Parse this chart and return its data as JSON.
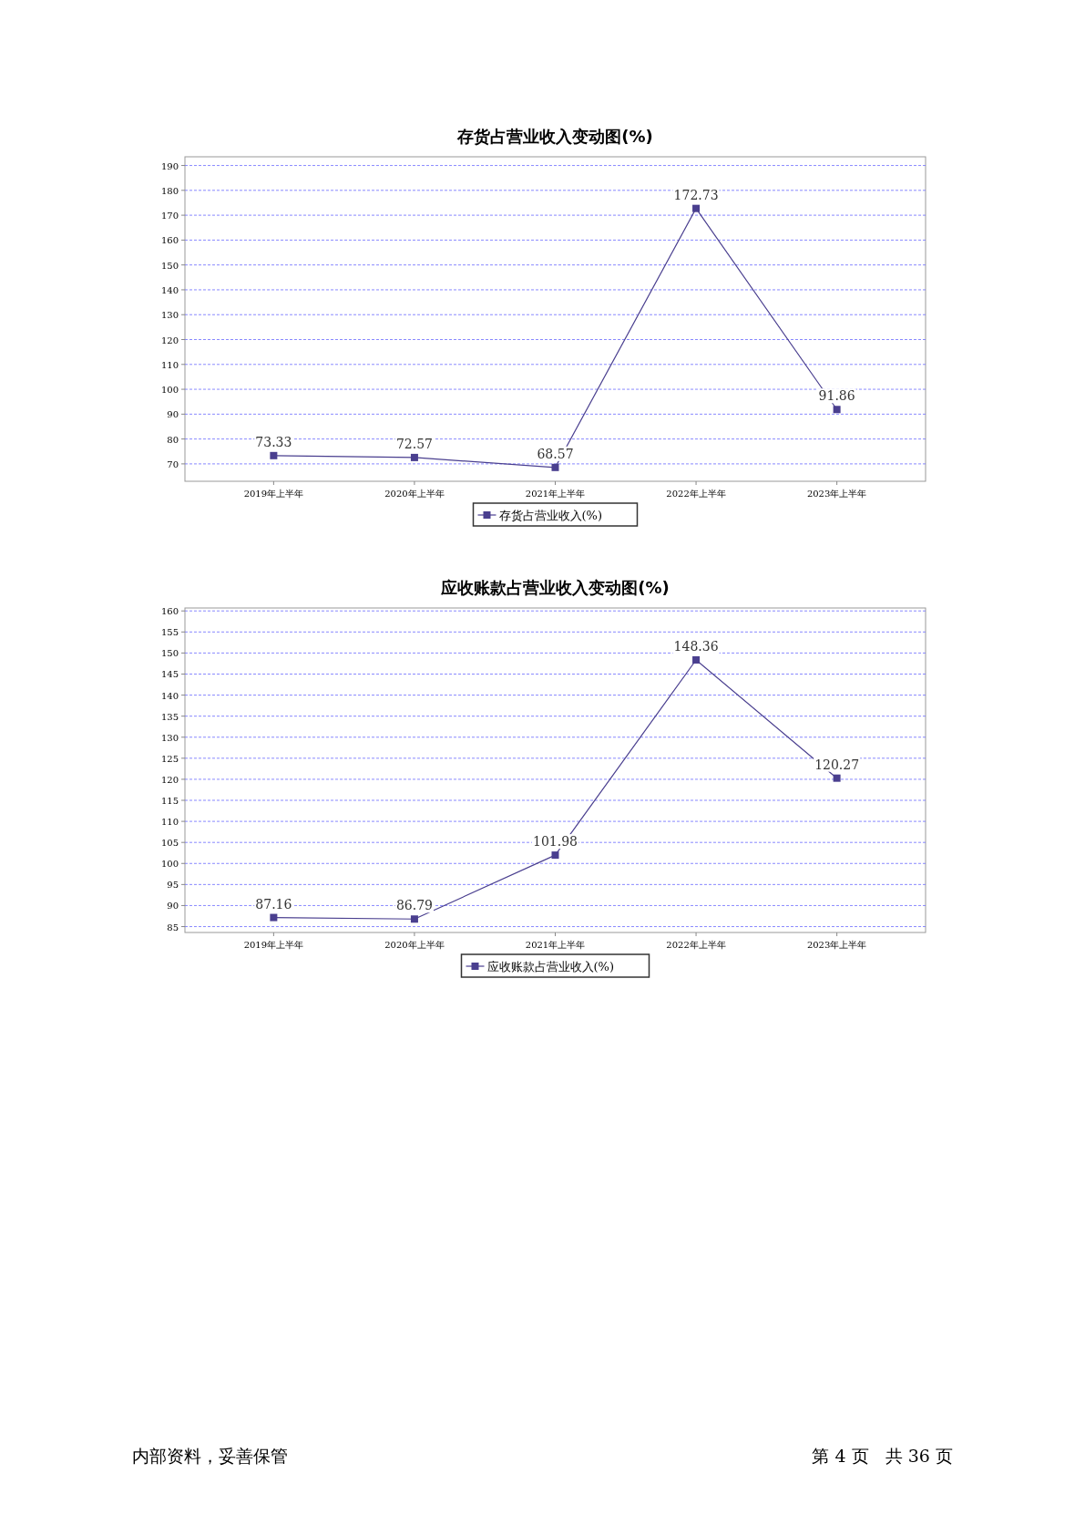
{
  "chart_data": [
    {
      "type": "line",
      "title": "存货占营业收入变动图(%)",
      "categories": [
        "2019年上半年",
        "2020年上半年",
        "2021年上半年",
        "2022年上半年",
        "2023年上半年"
      ],
      "series": [
        {
          "name": "存货占营业收入(%)",
          "color": "#4a3f8f",
          "values": [
            73.33,
            72.57,
            68.57,
            172.73,
            91.86
          ]
        }
      ],
      "ylim": [
        63,
        193.5
      ],
      "yticks": [
        70,
        80,
        90,
        100,
        110,
        120,
        130,
        140,
        150,
        160,
        170,
        180,
        190
      ],
      "grid": "y",
      "legend": "bottom",
      "marker": "square",
      "data_labels": true
    },
    {
      "type": "line",
      "title": "应收账款占营业收入变动图(%)",
      "categories": [
        "2019年上半年",
        "2020年上半年",
        "2021年上半年",
        "2022年上半年",
        "2023年上半年"
      ],
      "series": [
        {
          "name": "应收账款占营业收入(%)",
          "color": "#4a3f8f",
          "values": [
            87.16,
            86.79,
            101.98,
            148.36,
            120.27
          ]
        }
      ],
      "ylim": [
        83.6,
        160.7
      ],
      "yticks": [
        85,
        90,
        95,
        100,
        105,
        110,
        115,
        120,
        125,
        130,
        135,
        140,
        145,
        150,
        155,
        160
      ],
      "grid": "y",
      "legend": "bottom",
      "marker": "square",
      "data_labels": true,
      "annotations": [
        "内部资料，妥善保管",
        "第 4 页   共 36 页"
      ]
    }
  ]
}
